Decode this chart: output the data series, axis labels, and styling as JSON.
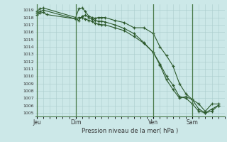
{
  "title": "Pression niveau de la mer( hPa )",
  "bg_color": "#cce8e8",
  "grid_color": "#aacccc",
  "line_color": "#2d5a2d",
  "marker_color": "#2d5a2d",
  "ylim": [
    1004.5,
    1019.8
  ],
  "yticks": [
    1005,
    1006,
    1007,
    1008,
    1009,
    1010,
    1011,
    1012,
    1013,
    1014,
    1015,
    1016,
    1017,
    1018,
    1019
  ],
  "day_labels": [
    "Jeu",
    "Dim",
    "Ven",
    "Sam"
  ],
  "day_positions": [
    0,
    24,
    72,
    96
  ],
  "xlim": [
    -1,
    116
  ],
  "line1_x": [
    0,
    2,
    4,
    24,
    26,
    28,
    30,
    32,
    34,
    36,
    38,
    40,
    42,
    48,
    54,
    60,
    66,
    72,
    76,
    80,
    84,
    88,
    92,
    96,
    100,
    104,
    108,
    112
  ],
  "line1_y": [
    1018.8,
    1019.2,
    1019.3,
    1018.0,
    1019.2,
    1019.3,
    1018.8,
    1018.2,
    1018.0,
    1017.9,
    1018.0,
    1018.0,
    1018.0,
    1017.6,
    1017.3,
    1016.6,
    1016.6,
    1015.8,
    1014.0,
    1012.8,
    1011.4,
    1009.0,
    1007.6,
    1006.8,
    1006.2,
    1005.2,
    1006.2,
    1006.2
  ],
  "line2_x": [
    0,
    2,
    4,
    24,
    26,
    28,
    30,
    32,
    34,
    36,
    38,
    40,
    42,
    48,
    54,
    60,
    66,
    72,
    76,
    80,
    84,
    88,
    92,
    96,
    100,
    104,
    108,
    112
  ],
  "line2_y": [
    1018.6,
    1018.8,
    1019.0,
    1017.8,
    1018.0,
    1018.0,
    1017.8,
    1017.6,
    1017.5,
    1017.2,
    1017.1,
    1017.0,
    1017.0,
    1016.6,
    1016.2,
    1015.4,
    1014.5,
    1013.2,
    1011.7,
    1010.0,
    1008.8,
    1007.2,
    1007.0,
    1006.2,
    1005.2,
    1005.0,
    1005.5,
    1006.0
  ],
  "line3_x": [
    0,
    2,
    4,
    6,
    24,
    26,
    28,
    30,
    32,
    34,
    36,
    38,
    40,
    42,
    48,
    54,
    60,
    66,
    72,
    76,
    80,
    84,
    88,
    92,
    96,
    100,
    104,
    108,
    112
  ],
  "line3_y": [
    1018.3,
    1018.6,
    1018.7,
    1018.4,
    1017.8,
    1017.6,
    1018.2,
    1018.3,
    1018.0,
    1017.8,
    1017.6,
    1017.5,
    1017.5,
    1017.4,
    1017.0,
    1016.5,
    1015.8,
    1014.6,
    1013.2,
    1011.5,
    1009.5,
    1008.2,
    1007.0,
    1007.2,
    1006.8,
    1005.5,
    1005.0,
    1005.2,
    1006.0
  ]
}
